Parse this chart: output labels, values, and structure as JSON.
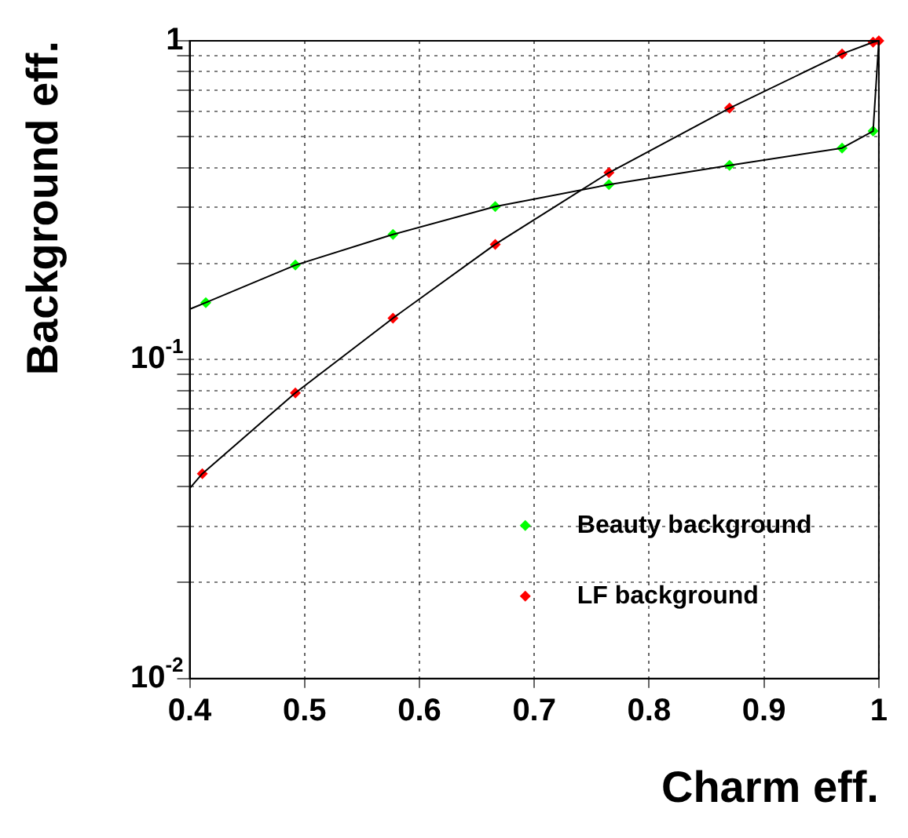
{
  "chart_data": {
    "type": "scatter",
    "xlabel": "Charm eff.",
    "ylabel": "Background eff.",
    "log": "y",
    "grid": true,
    "legend": "bottom right",
    "marker": "diamond",
    "xlim": [
      0.4,
      1.0
    ],
    "xticks": [
      0.4,
      0.5,
      0.6,
      0.7,
      0.8,
      0.9,
      1
    ],
    "ylim": [
      0.01,
      1
    ],
    "yticks": [
      {
        "value": 0.01,
        "label": "10$^{-2}$"
      },
      {
        "value": 0.02,
        "label": null
      },
      {
        "value": 0.03,
        "label": null
      },
      {
        "value": 0.04,
        "label": null
      },
      {
        "value": 0.05,
        "label": null
      },
      {
        "value": 0.06,
        "label": null
      },
      {
        "value": 0.07,
        "label": null
      },
      {
        "value": 0.08,
        "label": null
      },
      {
        "value": 0.09,
        "label": null
      },
      {
        "value": 0.1,
        "label": "10$^{-1}$"
      },
      {
        "value": 0.2,
        "label": null
      },
      {
        "value": 0.3,
        "label": null
      },
      {
        "value": 0.4,
        "label": null
      },
      {
        "value": 0.5,
        "label": null
      },
      {
        "value": 0.6,
        "label": null
      },
      {
        "value": 0.7,
        "label": null
      },
      {
        "value": 0.8,
        "label": null
      },
      {
        "value": 0.9,
        "label": null
      },
      {
        "value": 1,
        "label": "1"
      }
    ],
    "series": [
      {
        "type": "line",
        "marker": "none",
        "color": "#000000",
        "x": [
          0.4,
          0.414,
          0.492,
          0.577,
          0.666,
          0.765,
          0.87,
          0.968,
          0.995,
          1.0
        ],
        "values": [
          0.144,
          0.151,
          0.198,
          0.247,
          0.302,
          0.354,
          0.407,
          0.461,
          0.521,
          1.0
        ]
      },
      {
        "type": "line",
        "marker": "none",
        "color": "#000000",
        "x": [
          0.4,
          0.411,
          0.492,
          0.577,
          0.666,
          0.765,
          0.87,
          0.968,
          0.995,
          1.0
        ],
        "values": [
          0.0395,
          0.0439,
          0.0787,
          0.135,
          0.23,
          0.386,
          0.615,
          0.91,
          0.99,
          1.0
        ]
      },
      {
        "name": "Beauty background",
        "color": "#00ff00",
        "x": [
          0.414,
          0.492,
          0.577,
          0.666,
          0.765,
          0.87,
          0.968,
          0.995
        ],
        "values": [
          0.151,
          0.198,
          0.247,
          0.302,
          0.354,
          0.407,
          0.461,
          0.521
        ]
      },
      {
        "name": "LF background",
        "color": "#ff0000",
        "x": [
          0.411,
          0.492,
          0.577,
          0.666,
          0.765,
          0.87,
          0.968,
          0.995,
          1.0
        ],
        "values": [
          0.0439,
          0.0787,
          0.135,
          0.23,
          0.386,
          0.615,
          0.91,
          0.99,
          1.0
        ]
      }
    ]
  }
}
